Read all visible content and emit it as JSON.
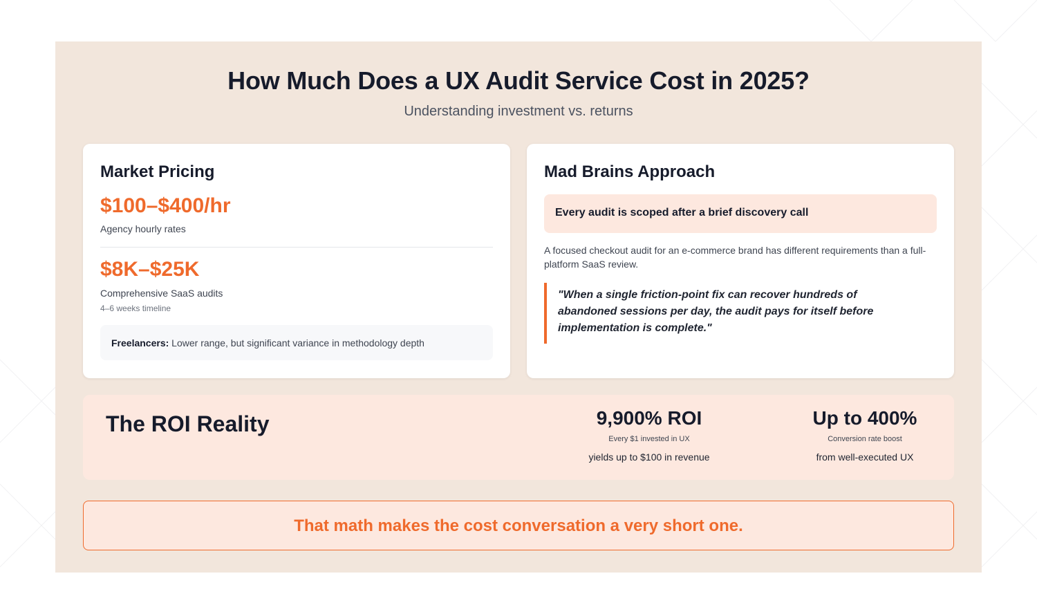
{
  "header": {
    "title": "How Much Does a UX Audit Service Cost in 2025?",
    "subtitle": "Understanding investment vs. returns"
  },
  "market_pricing": {
    "title": "Market Pricing",
    "hourly_price": "$100–$400/hr",
    "hourly_label": "Agency hourly rates",
    "saas_price": "$8K–$25K",
    "saas_label": "Comprehensive SaaS audits",
    "saas_note": "4–6 weeks timeline",
    "freelancer_label": "Freelancers:",
    "freelancer_text": " Lower range, but significant variance in methodology depth"
  },
  "approach": {
    "title": "Mad Brains Approach",
    "highlight": "Every audit is scoped after a brief discovery call",
    "description": "A focused checkout audit for an e-commerce brand has different requirements than a full-platform SaaS review.",
    "quote": "\"When a single friction-point fix can recover hundreds of abandoned sessions per day, the audit pays for itself before implementation is complete.\""
  },
  "roi": {
    "title": "The ROI Reality",
    "stats": [
      {
        "value": "9,900% ROI",
        "note": "Every $1 invested in UX",
        "sub": "yields up to $100 in revenue"
      },
      {
        "value": "Up to 400%",
        "note": "Conversion rate boost",
        "sub": "from well-executed UX"
      }
    ]
  },
  "cta": {
    "text": "That math makes the cost conversation a very short one."
  },
  "colors": {
    "accent": "#ef6a2c",
    "panel_bg": "#f2e6dc",
    "tint_bg": "#fde8df",
    "text_dark": "#161b2b"
  }
}
